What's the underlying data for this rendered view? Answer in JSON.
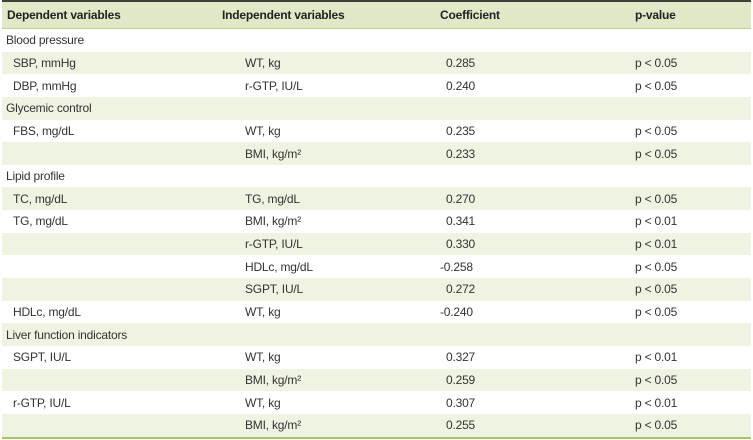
{
  "colors": {
    "header_bg": "#dfe9c8",
    "row_green": "#eff3e2",
    "row_white": "#ffffff",
    "top_border": "#3f3f3a",
    "header_rule": "#bdd291",
    "bottom_border": "#a6c464",
    "text": "#333333",
    "header_text": "#222222"
  },
  "table": {
    "columns": [
      "Dependent variables",
      "Independent variables",
      "Coefficient",
      "p-value"
    ],
    "rows": [
      {
        "type": "section",
        "label": "Blood pressure"
      },
      {
        "type": "data",
        "dep": "SBP, mmHg",
        "indep": "WT, kg",
        "coef": "0.285",
        "p": "p < 0.05"
      },
      {
        "type": "data",
        "dep": "DBP, mmHg",
        "indep": "r-GTP, IU/L",
        "coef": "0.240",
        "p": "p < 0.05"
      },
      {
        "type": "section",
        "label": "Glycemic control"
      },
      {
        "type": "data",
        "dep": "FBS, mg/dL",
        "indep": "WT, kg",
        "coef": "0.235",
        "p": "p < 0.05"
      },
      {
        "type": "data",
        "dep": "",
        "indep": "BMI, kg/m²",
        "coef": "0.233",
        "p": "p < 0.05"
      },
      {
        "type": "section",
        "label": "Lipid profile"
      },
      {
        "type": "data",
        "dep": "TC, mg/dL",
        "indep": "TG, mg/dL",
        "coef": "0.270",
        "p": "p < 0.05"
      },
      {
        "type": "data",
        "dep": "TG, mg/dL",
        "indep": "BMI, kg/m²",
        "coef": "0.341",
        "p": "p < 0.01"
      },
      {
        "type": "data",
        "dep": "",
        "indep": "r-GTP, IU/L",
        "coef": "0.330",
        "p": "p < 0.01"
      },
      {
        "type": "data",
        "dep": "",
        "indep": "HDLc, mg/dL",
        "coef": "-0.258",
        "p": "p < 0.05"
      },
      {
        "type": "data",
        "dep": "",
        "indep": "SGPT, IU/L",
        "coef": "0.272",
        "p": "p < 0.05"
      },
      {
        "type": "data",
        "dep": "HDLc, mg/dL",
        "indep": "WT, kg",
        "coef": "-0.240",
        "p": "p < 0.05"
      },
      {
        "type": "section",
        "label": "Liver function indicators"
      },
      {
        "type": "data",
        "dep": "SGPT, IU/L",
        "indep": "WT, kg",
        "coef": "0.327",
        "p": "p < 0.01"
      },
      {
        "type": "data",
        "dep": "",
        "indep": "BMI, kg/m²",
        "coef": "0.259",
        "p": "p < 0.05"
      },
      {
        "type": "data",
        "dep": "r-GTP, IU/L",
        "indep": "WT, kg",
        "coef": "0.307",
        "p": "p < 0.01"
      },
      {
        "type": "data",
        "dep": "",
        "indep": "BMI, kg/m²",
        "coef": "0.255",
        "p": "p < 0.05"
      }
    ]
  }
}
